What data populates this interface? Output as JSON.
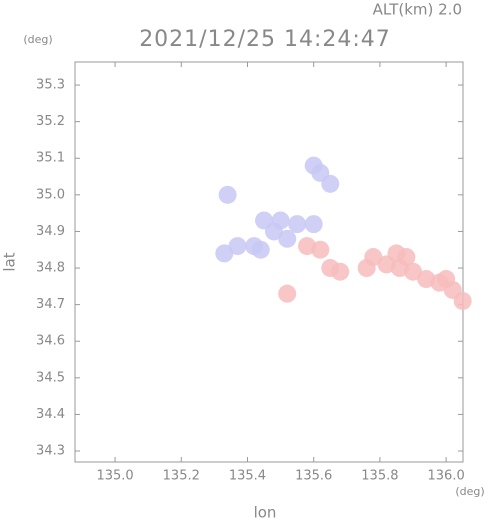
{
  "header": {
    "altitude": "ALT(km)  2.0",
    "lat_unit": "(deg)",
    "lon_unit": "(deg)"
  },
  "chart_data": {
    "type": "scatter",
    "title": "2021/12/25 14:24:47",
    "x_label": "lon",
    "y_label": "lat",
    "xlim": [
      134.879,
      136.051
    ],
    "ylim": [
      34.27,
      35.363
    ],
    "xticks": [
      {
        "value": 135,
        "label": "135.0"
      },
      135.2,
      135.4,
      135.6,
      135.8,
      {
        "value": 136,
        "label": "136.0"
      }
    ],
    "yticks": [
      34.3,
      34.4,
      34.5,
      34.6,
      34.7,
      34.8,
      34.9,
      {
        "value": 35,
        "label": "35.0"
      },
      35.1,
      35.2,
      35.3
    ],
    "series": [
      {
        "color": "#c8c8f5",
        "x": [
          135.45,
          135.5,
          135.55,
          135.6,
          135.48,
          135.52,
          135.6,
          135.62,
          135.65,
          135.37,
          135.33,
          135.42,
          135.44,
          135.34
        ],
        "y": [
          34.93,
          34.93,
          34.92,
          34.92,
          34.9,
          34.88,
          35.08,
          35.06,
          35.03,
          34.86,
          34.84,
          34.86,
          34.85,
          35.0
        ]
      },
      {
        "color": "#f7bcbc",
        "x": [
          135.58,
          135.62,
          135.65,
          135.68,
          135.78,
          135.82,
          135.86,
          135.9,
          135.94,
          135.98,
          136.02,
          136.05,
          135.76,
          135.52,
          135.85,
          135.88,
          136.0
        ],
        "y": [
          34.86,
          34.85,
          34.8,
          34.79,
          34.83,
          34.81,
          34.8,
          34.79,
          34.77,
          34.76,
          34.74,
          34.71,
          34.8,
          34.73,
          34.84,
          34.83,
          34.77
        ]
      }
    ]
  }
}
